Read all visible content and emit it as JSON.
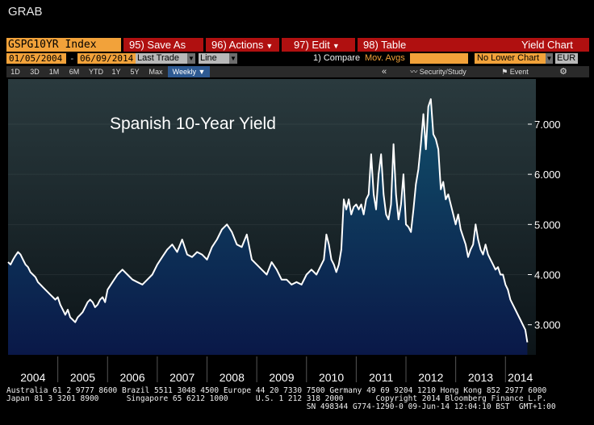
{
  "window": {
    "title": "GRAB"
  },
  "toolbar": {
    "ticker": "GSPG10YR Index",
    "save_as": "95) Save As",
    "actions": "96) Actions",
    "edit": "97) Edit",
    "table": "98) Table",
    "right_title": "Yield Chart"
  },
  "controls": {
    "start_date": "01/05/2004",
    "dash": "-",
    "end_date": "06/09/2014",
    "price_type": "Last Trade",
    "chart_style": "Line",
    "compare": "1) Compare",
    "mov_avgs": "Mov. Avgs",
    "lower_chart": "No Lower Chart",
    "currency": "EUR"
  },
  "periods": [
    "1D",
    "3D",
    "1M",
    "6M",
    "YTD",
    "1Y",
    "5Y",
    "Max",
    "Weekly ▼"
  ],
  "panel_buttons": {
    "collapse": "«",
    "security": "Security/Study",
    "event": "Event",
    "gear": "⚙"
  },
  "colors": {
    "accent_red": "#b01010",
    "accent_orange": "#f2a23a",
    "line": "#ffffff",
    "fill_top": "#11506a",
    "fill_bottom": "#0a1848"
  },
  "chart_data": {
    "type": "area",
    "title": "Spanish 10-Year Yield",
    "x_tick_labels": [
      "2004",
      "2005",
      "2006",
      "2007",
      "2008",
      "2009",
      "2010",
      "2011",
      "2012",
      "2013",
      "2014"
    ],
    "y_tick_labels": [
      "3.000",
      "4.000",
      "5.000",
      "6.000",
      "7.000"
    ],
    "ylim": [
      2.4,
      7.9
    ],
    "x_range": [
      2004.0,
      2014.45
    ],
    "series": [
      {
        "x": [
          2004.0,
          2004.05,
          2004.1,
          2004.15,
          2004.2,
          2004.25,
          2004.3,
          2004.35,
          2004.4,
          2004.45,
          2004.5,
          2004.55,
          2004.6,
          2004.65,
          2004.7,
          2004.75,
          2004.8,
          2004.85,
          2004.9,
          2004.95,
          2005.0,
          2005.05,
          2005.1,
          2005.15,
          2005.2,
          2005.25,
          2005.3,
          2005.35,
          2005.4,
          2005.45,
          2005.5,
          2005.55,
          2005.6,
          2005.65,
          2005.7,
          2005.75,
          2005.8,
          2005.85,
          2005.9,
          2005.95,
          2006.0,
          2006.1,
          2006.2,
          2006.3,
          2006.4,
          2006.5,
          2006.6,
          2006.7,
          2006.8,
          2006.9,
          2007.0,
          2007.1,
          2007.2,
          2007.3,
          2007.4,
          2007.5,
          2007.6,
          2007.7,
          2007.8,
          2007.9,
          2008.0,
          2008.1,
          2008.2,
          2008.3,
          2008.4,
          2008.5,
          2008.6,
          2008.7,
          2008.8,
          2008.9,
          2009.0,
          2009.1,
          2009.2,
          2009.3,
          2009.4,
          2009.5,
          2009.6,
          2009.7,
          2009.8,
          2009.9,
          2010.0,
          2010.1,
          2010.2,
          2010.3,
          2010.35,
          2010.4,
          2010.45,
          2010.5,
          2010.55,
          2010.6,
          2010.65,
          2010.7,
          2010.75,
          2010.8,
          2010.85,
          2010.9,
          2010.95,
          2011.0,
          2011.05,
          2011.1,
          2011.15,
          2011.2,
          2011.25,
          2011.3,
          2011.35,
          2011.4,
          2011.45,
          2011.5,
          2011.55,
          2011.6,
          2011.65,
          2011.7,
          2011.75,
          2011.8,
          2011.85,
          2011.9,
          2011.95,
          2012.0,
          2012.05,
          2012.1,
          2012.15,
          2012.2,
          2012.25,
          2012.3,
          2012.35,
          2012.4,
          2012.45,
          2012.5,
          2012.55,
          2012.6,
          2012.65,
          2012.7,
          2012.75,
          2012.8,
          2012.85,
          2012.9,
          2012.95,
          2013.0,
          2013.05,
          2013.1,
          2013.15,
          2013.2,
          2013.25,
          2013.3,
          2013.35,
          2013.4,
          2013.45,
          2013.5,
          2013.55,
          2013.6,
          2013.65,
          2013.7,
          2013.75,
          2013.8,
          2013.85,
          2013.9,
          2013.95,
          2014.0,
          2014.05,
          2014.1,
          2014.15,
          2014.2,
          2014.25,
          2014.3,
          2014.35,
          2014.4,
          2014.44
        ],
        "y": [
          4.25,
          4.2,
          4.3,
          4.38,
          4.45,
          4.4,
          4.3,
          4.2,
          4.15,
          4.05,
          4.0,
          3.95,
          3.85,
          3.8,
          3.75,
          3.7,
          3.65,
          3.6,
          3.55,
          3.5,
          3.55,
          3.4,
          3.3,
          3.2,
          3.3,
          3.15,
          3.1,
          3.05,
          3.15,
          3.2,
          3.25,
          3.35,
          3.45,
          3.5,
          3.45,
          3.35,
          3.4,
          3.5,
          3.55,
          3.45,
          3.7,
          3.85,
          4.0,
          4.1,
          4.0,
          3.9,
          3.85,
          3.8,
          3.9,
          4.0,
          4.2,
          4.35,
          4.5,
          4.6,
          4.45,
          4.7,
          4.4,
          4.35,
          4.45,
          4.4,
          4.3,
          4.55,
          4.7,
          4.9,
          5.0,
          4.85,
          4.6,
          4.55,
          4.8,
          4.3,
          4.2,
          4.1,
          4.0,
          4.25,
          4.1,
          3.9,
          3.9,
          3.8,
          3.85,
          3.8,
          4.0,
          4.1,
          4.0,
          4.2,
          4.3,
          4.8,
          4.6,
          4.3,
          4.2,
          4.05,
          4.2,
          4.5,
          5.5,
          5.3,
          5.5,
          5.2,
          5.35,
          5.4,
          5.3,
          5.4,
          5.2,
          5.5,
          5.6,
          6.4,
          5.6,
          5.3,
          6.0,
          6.4,
          5.6,
          5.2,
          5.1,
          5.4,
          6.6,
          5.6,
          5.1,
          5.4,
          6.0,
          5.0,
          4.95,
          4.85,
          5.3,
          5.8,
          6.1,
          6.6,
          7.2,
          6.5,
          7.35,
          7.5,
          6.8,
          6.7,
          6.5,
          5.7,
          5.85,
          5.5,
          5.6,
          5.4,
          5.2,
          5.0,
          5.2,
          4.9,
          4.75,
          4.6,
          4.35,
          4.5,
          4.6,
          5.0,
          4.7,
          4.5,
          4.4,
          4.6,
          4.4,
          4.3,
          4.2,
          4.1,
          4.15,
          4.0,
          4.0,
          3.8,
          3.7,
          3.5,
          3.4,
          3.3,
          3.2,
          3.1,
          3.0,
          2.9,
          2.65
        ]
      }
    ]
  },
  "footer": {
    "line1": "Australia 61 2 9777 8600 Brazil 5511 3048 4500 Europe 44 20 7330 7500 Germany 49 69 9204 1210 Hong Kong 852 2977 6000",
    "line2": "Japan 81 3 3201 8900      Singapore 65 6212 1000      U.S. 1 212 318 2000       Copyright 2014 Bloomberg Finance L.P.",
    "line3": "                                                                 SN 498344 G774-1290-0 09-Jun-14 12:04:10 BST  GMT+1:00"
  }
}
